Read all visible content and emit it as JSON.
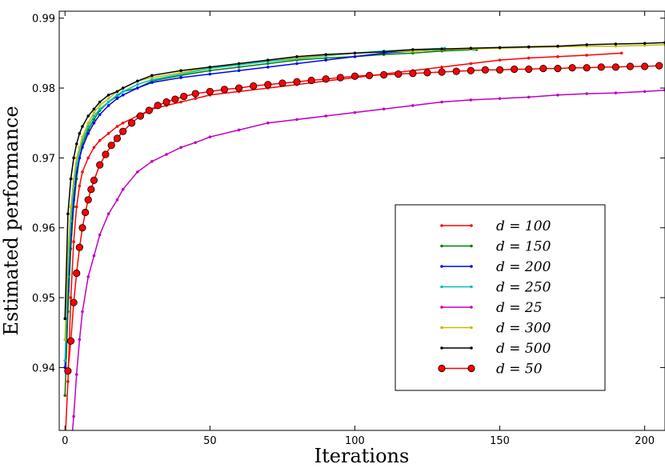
{
  "chart_data": {
    "type": "line",
    "title": "",
    "xlabel": "Iterations",
    "ylabel": "Estimated performance",
    "xlim": [
      -2,
      207
    ],
    "ylim": [
      0.931,
      0.991
    ],
    "xticks": [
      0,
      50,
      100,
      150,
      200
    ],
    "xtick_labels": [
      "0",
      "50",
      "100",
      "150",
      "200"
    ],
    "yticks": [
      0.94,
      0.95,
      0.96,
      0.97,
      0.98,
      0.99
    ],
    "ytick_labels": [
      "0.94",
      "0.95",
      "0.96",
      "0.97",
      "0.98",
      "0.99"
    ],
    "grid": false,
    "legend_position": "center-right",
    "series": [
      {
        "name": "d = 100",
        "color": "#ff0000",
        "marker": "small-dot",
        "x": [
          0,
          1,
          2,
          3,
          4,
          5,
          6,
          8,
          10,
          12,
          15,
          18,
          20,
          25,
          30,
          35,
          40,
          45,
          50,
          60,
          70,
          80,
          90,
          100,
          110,
          120,
          130,
          140,
          150,
          160,
          170,
          180,
          192
        ],
        "y": [
          0.929,
          0.938,
          0.95,
          0.958,
          0.963,
          0.966,
          0.968,
          0.97,
          0.9715,
          0.9725,
          0.9735,
          0.9745,
          0.975,
          0.976,
          0.977,
          0.9775,
          0.978,
          0.9785,
          0.979,
          0.9795,
          0.98,
          0.9805,
          0.981,
          0.9815,
          0.982,
          0.9825,
          0.983,
          0.9835,
          0.984,
          0.9843,
          0.9845,
          0.9847,
          0.985
        ]
      },
      {
        "name": "d = 150",
        "color": "#008000",
        "marker": "small-dot",
        "x": [
          0,
          1,
          2,
          3,
          4,
          5,
          6,
          8,
          10,
          12,
          15,
          18,
          20,
          25,
          30,
          40,
          50,
          60,
          70,
          80,
          90,
          100,
          110,
          120,
          130,
          142
        ],
        "y": [
          0.936,
          0.948,
          0.957,
          0.963,
          0.967,
          0.97,
          0.972,
          0.974,
          0.9755,
          0.9768,
          0.978,
          0.9788,
          0.9795,
          0.98,
          0.981,
          0.9818,
          0.9825,
          0.983,
          0.9835,
          0.984,
          0.9843,
          0.9845,
          0.9848,
          0.985,
          0.9853,
          0.9855
        ]
      },
      {
        "name": "d = 200",
        "color": "#0000ff",
        "marker": "small-dot",
        "x": [
          0,
          1,
          2,
          3,
          4,
          5,
          6,
          8,
          10,
          12,
          15,
          18,
          20,
          25,
          30,
          40,
          50,
          60,
          70,
          80,
          90,
          100,
          110,
          120,
          131
        ],
        "y": [
          0.94,
          0.951,
          0.959,
          0.964,
          0.968,
          0.97,
          0.9715,
          0.9735,
          0.975,
          0.9762,
          0.9775,
          0.9785,
          0.979,
          0.98,
          0.9808,
          0.9815,
          0.982,
          0.9825,
          0.983,
          0.9835,
          0.984,
          0.9845,
          0.985,
          0.9853,
          0.9855
        ]
      },
      {
        "name": "d = 250",
        "color": "#00bfbf",
        "marker": "small-dot",
        "x": [
          0,
          1,
          2,
          3,
          4,
          5,
          6,
          8,
          10,
          12,
          15,
          18,
          20,
          25,
          30,
          40,
          50,
          60,
          70,
          80,
          90,
          100,
          110,
          120,
          131
        ],
        "y": [
          0.941,
          0.953,
          0.961,
          0.966,
          0.969,
          0.971,
          0.9725,
          0.9745,
          0.976,
          0.977,
          0.978,
          0.979,
          0.9795,
          0.9805,
          0.9812,
          0.982,
          0.9828,
          0.9833,
          0.9838,
          0.9842,
          0.9846,
          0.985,
          0.9853,
          0.9855,
          0.9857
        ]
      },
      {
        "name": "d = 25",
        "color": "#bf00bf",
        "marker": "small-dot",
        "x": [
          2,
          3,
          4,
          5,
          6,
          8,
          10,
          12,
          15,
          18,
          20,
          25,
          30,
          35,
          40,
          45,
          50,
          60,
          70,
          80,
          90,
          100,
          110,
          120,
          130,
          140,
          150,
          160,
          170,
          180,
          190,
          200,
          207
        ],
        "y": [
          0.928,
          0.933,
          0.939,
          0.944,
          0.948,
          0.953,
          0.956,
          0.959,
          0.962,
          0.964,
          0.9655,
          0.968,
          0.9695,
          0.9705,
          0.9715,
          0.9722,
          0.973,
          0.974,
          0.975,
          0.9755,
          0.976,
          0.9765,
          0.977,
          0.9775,
          0.978,
          0.9783,
          0.9785,
          0.9787,
          0.979,
          0.9792,
          0.9793,
          0.9795,
          0.9797
        ]
      },
      {
        "name": "d = 300",
        "color": "#bfbf00",
        "marker": "small-dot",
        "x": [
          0,
          1,
          2,
          3,
          4,
          5,
          6,
          8,
          10,
          12,
          15,
          18,
          20,
          25,
          30,
          40,
          50,
          60,
          70,
          80,
          90,
          100,
          110,
          120,
          130,
          140,
          150,
          160,
          170,
          180,
          190,
          200,
          207
        ],
        "y": [
          0.944,
          0.956,
          0.963,
          0.967,
          0.97,
          0.9715,
          0.973,
          0.975,
          0.9765,
          0.9775,
          0.9785,
          0.9795,
          0.98,
          0.981,
          0.9815,
          0.9822,
          0.983,
          0.9835,
          0.984,
          0.9843,
          0.9847,
          0.985,
          0.9852,
          0.9853,
          0.9855,
          0.9856,
          0.9857,
          0.9858,
          0.9859,
          0.986,
          0.986,
          0.9861,
          0.9862
        ]
      },
      {
        "name": "d = 500",
        "color": "#000000",
        "marker": "small-dot",
        "x": [
          0,
          1,
          2,
          3,
          4,
          5,
          6,
          8,
          10,
          12,
          15,
          18,
          20,
          25,
          30,
          40,
          50,
          60,
          70,
          80,
          90,
          100,
          110,
          120,
          130,
          140,
          150,
          160,
          170,
          180,
          190,
          200,
          207
        ],
        "y": [
          0.947,
          0.962,
          0.967,
          0.97,
          0.972,
          0.9735,
          0.9745,
          0.976,
          0.977,
          0.978,
          0.979,
          0.9795,
          0.98,
          0.981,
          0.9818,
          0.9825,
          0.983,
          0.9835,
          0.984,
          0.9845,
          0.9848,
          0.985,
          0.9852,
          0.9855,
          0.9856,
          0.9857,
          0.9858,
          0.9859,
          0.986,
          0.9862,
          0.9863,
          0.9864,
          0.9865
        ]
      },
      {
        "name": "d = 50",
        "color": "#ff0000",
        "marker": "large-circle",
        "x": [
          1,
          2,
          3,
          4,
          5,
          6,
          7,
          8,
          9,
          10,
          12,
          14,
          16,
          18,
          20,
          23,
          26,
          29,
          32,
          35,
          38,
          41,
          45,
          50,
          55,
          60,
          65,
          70,
          75,
          80,
          85,
          90,
          95,
          100,
          105,
          110,
          115,
          120,
          125,
          130,
          135,
          140,
          145,
          150,
          155,
          160,
          165,
          170,
          175,
          180,
          185,
          190,
          195,
          200,
          205
        ],
        "y": [
          0.9395,
          0.9438,
          0.9493,
          0.9535,
          0.9572,
          0.96,
          0.9622,
          0.964,
          0.9655,
          0.9668,
          0.969,
          0.9705,
          0.9718,
          0.9728,
          0.9738,
          0.975,
          0.976,
          0.9768,
          0.9775,
          0.978,
          0.9784,
          0.9788,
          0.9792,
          0.9795,
          0.9798,
          0.98,
          0.9803,
          0.9805,
          0.9807,
          0.9809,
          0.9811,
          0.9813,
          0.9815,
          0.9817,
          0.9818,
          0.9819,
          0.982,
          0.9821,
          0.9822,
          0.9823,
          0.9824,
          0.9825,
          0.9826,
          0.9826,
          0.9827,
          0.9827,
          0.9828,
          0.9828,
          0.9829,
          0.9829,
          0.983,
          0.983,
          0.9831,
          0.9831,
          0.9832
        ]
      }
    ]
  }
}
